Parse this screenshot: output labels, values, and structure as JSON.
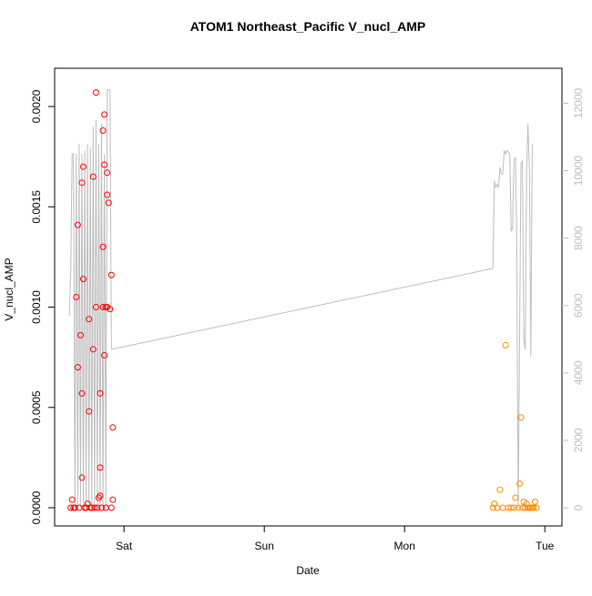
{
  "chart_data": {
    "type": "scatter",
    "title": "ATOM1 Northeast_Pacific V_nucl_AMP",
    "xlabel": "Date",
    "ylabel": "V_nucl_AMP",
    "x_ticks": [
      {
        "label": "Sat",
        "day": 1
      },
      {
        "label": "Sun",
        "day": 2
      },
      {
        "label": "Mon",
        "day": 3
      },
      {
        "label": "Tue",
        "day": 4
      }
    ],
    "xlim": [
      0.58,
      4.07
    ],
    "ylim": [
      0,
      0.0021
    ],
    "y_ticks": [
      {
        "label": "0.0000",
        "value": 0
      },
      {
        "label": "0.0005",
        "value": 0.0005
      },
      {
        "label": "0.0010",
        "value": 0.001
      },
      {
        "label": "0.0015",
        "value": 0.0015
      },
      {
        "label": "0.0020",
        "value": 0.002
      }
    ],
    "y2lim": [
      0,
      12500
    ],
    "y2_ticks": [
      {
        "label": "0",
        "value": 0
      },
      {
        "label": "2000",
        "value": 2000
      },
      {
        "label": "4000",
        "value": 4000
      },
      {
        "label": "6000",
        "value": 6000
      },
      {
        "label": "8000",
        "value": 8000
      },
      {
        "label": "10000",
        "value": 10000
      },
      {
        "label": "12000",
        "value": 12000
      }
    ],
    "colors": {
      "series_1": "#ff0000",
      "series_2": "#ff8c00",
      "secondary_line": "#bdbdbd",
      "axis": "#000000"
    },
    "series": [
      {
        "color": "#ff0000",
        "marker": "open-circle",
        "points": [
          [
            0.63,
            4e-05
          ],
          [
            0.65,
            0.0
          ],
          [
            0.66,
            0.00105
          ],
          [
            0.67,
            0.0007
          ],
          [
            0.67,
            0.00141
          ],
          [
            0.69,
            0.00086
          ],
          [
            0.7,
            0.00057
          ],
          [
            0.7,
            0.00162
          ],
          [
            0.71,
            0.0017
          ],
          [
            0.71,
            0.00114
          ],
          [
            0.7,
            0.00015
          ],
          [
            0.75,
            0.00094
          ],
          [
            0.75,
            0.00048
          ],
          [
            0.74,
            2e-05
          ],
          [
            0.78,
            0.00165
          ],
          [
            0.78,
            0.00079
          ],
          [
            0.8,
            0.00207
          ],
          [
            0.8,
            0.001
          ],
          [
            0.82,
            5e-05
          ],
          [
            0.83,
            6e-05
          ],
          [
            0.83,
            0.0002
          ],
          [
            0.83,
            0.00057
          ],
          [
            0.85,
            0.0013
          ],
          [
            0.85,
            0.00188
          ],
          [
            0.86,
            0.00196
          ],
          [
            0.86,
            0.00171
          ],
          [
            0.85,
            0.001
          ],
          [
            0.86,
            0.00076
          ],
          [
            0.87,
            0.001
          ],
          [
            0.88,
            0.00167
          ],
          [
            0.88,
            0.00156
          ],
          [
            0.89,
            0.00152
          ],
          [
            0.88,
            0.001
          ],
          [
            0.9,
            0.00099
          ],
          [
            0.91,
            0.00116
          ],
          [
            0.92,
            0.0004
          ],
          [
            0.92,
            4e-05
          ],
          [
            0.91,
            0.0
          ],
          [
            0.62,
            0.0
          ],
          [
            0.64,
            0.0
          ],
          [
            0.68,
            0.0
          ],
          [
            0.72,
            0.0
          ],
          [
            0.73,
            0.0
          ],
          [
            0.76,
            0.0
          ],
          [
            0.77,
            0.0
          ],
          [
            0.79,
            0.0
          ],
          [
            0.81,
            0.0
          ],
          [
            0.84,
            0.0
          ],
          [
            0.87,
            0.0
          ]
        ]
      },
      {
        "color": "#ff8c00",
        "marker": "open-circle",
        "points": [
          [
            3.63,
            0.0
          ],
          [
            3.64,
            2e-05
          ],
          [
            3.66,
            0.0
          ],
          [
            3.68,
            9e-05
          ],
          [
            3.7,
            0.0
          ],
          [
            3.72,
            0.00081
          ],
          [
            3.74,
            0.0
          ],
          [
            3.76,
            0.0
          ],
          [
            3.78,
            0.0
          ],
          [
            3.79,
            5e-05
          ],
          [
            3.81,
            0.0
          ],
          [
            3.82,
            0.00012
          ],
          [
            3.83,
            0.00045
          ],
          [
            3.84,
            0.0
          ],
          [
            3.85,
            3e-05
          ],
          [
            3.86,
            0.0
          ],
          [
            3.87,
            2e-05
          ],
          [
            3.88,
            0.0
          ],
          [
            3.89,
            0.0
          ],
          [
            3.9,
            0.0
          ],
          [
            3.91,
            0.0
          ],
          [
            3.92,
            0.0
          ],
          [
            3.93,
            3e-05
          ],
          [
            3.94,
            0.0
          ]
        ]
      }
    ],
    "secondary_line_points": [
      [
        0.61,
        5700
      ],
      [
        0.62,
        7000
      ],
      [
        0.63,
        10500
      ],
      [
        0.64,
        10500
      ],
      [
        0.65,
        0
      ],
      [
        0.66,
        10500
      ],
      [
        0.67,
        0
      ],
      [
        0.68,
        10800
      ],
      [
        0.69,
        0
      ],
      [
        0.7,
        10500
      ],
      [
        0.71,
        0
      ],
      [
        0.72,
        10600
      ],
      [
        0.73,
        0
      ],
      [
        0.74,
        10800
      ],
      [
        0.75,
        0
      ],
      [
        0.76,
        10700
      ],
      [
        0.77,
        0
      ],
      [
        0.78,
        11300
      ],
      [
        0.79,
        0
      ],
      [
        0.8,
        11500
      ],
      [
        0.81,
        0
      ],
      [
        0.82,
        10800
      ],
      [
        0.83,
        0
      ],
      [
        0.84,
        11400
      ],
      [
        0.85,
        0
      ],
      [
        0.86,
        10500
      ],
      [
        0.87,
        0
      ],
      [
        0.88,
        12400
      ],
      [
        0.89,
        12400
      ],
      [
        0.9,
        12400
      ],
      [
        0.91,
        4700
      ],
      [
        3.63,
        7100
      ],
      [
        3.64,
        9700
      ],
      [
        3.65,
        9500
      ],
      [
        3.66,
        9600
      ],
      [
        3.67,
        9500
      ],
      [
        3.68,
        10100
      ],
      [
        3.69,
        9900
      ],
      [
        3.7,
        9900
      ],
      [
        3.71,
        10600
      ],
      [
        3.72,
        10500
      ],
      [
        3.73,
        10600
      ],
      [
        3.74,
        10550
      ],
      [
        3.75,
        10500
      ],
      [
        3.76,
        8200
      ],
      [
        3.77,
        8300
      ],
      [
        3.78,
        10300
      ],
      [
        3.79,
        10400
      ],
      [
        3.8,
        8000
      ],
      [
        3.81,
        0
      ],
      [
        3.82,
        5000
      ],
      [
        3.83,
        10200
      ],
      [
        3.84,
        10300
      ],
      [
        3.85,
        5000
      ],
      [
        3.86,
        4700
      ],
      [
        3.87,
        10000
      ],
      [
        3.88,
        11400
      ],
      [
        3.89,
        10000
      ],
      [
        3.9,
        4500
      ],
      [
        3.91,
        10800
      ]
    ]
  }
}
